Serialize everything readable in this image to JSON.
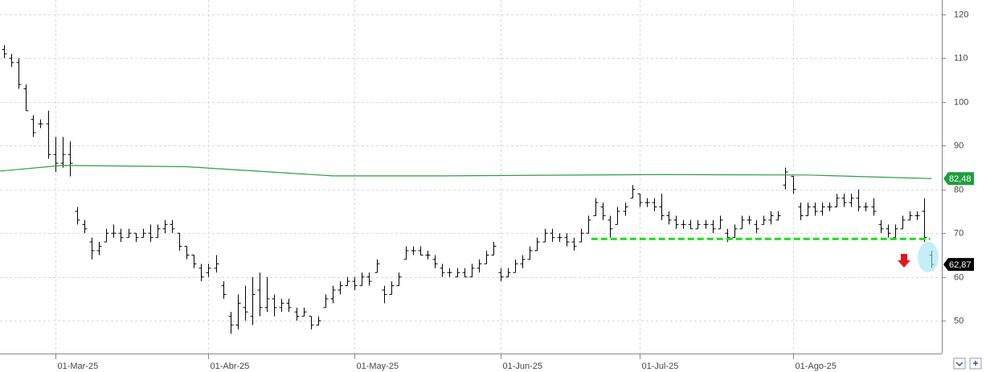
{
  "chart_data": {
    "type": "ohlc",
    "xlim": [
      -0.55,
      128.4
    ],
    "ylim": [
      42.5,
      123.3
    ],
    "yticks": [
      50,
      60,
      70,
      80,
      90,
      100,
      110,
      120
    ],
    "xticks": [
      {
        "value": 7,
        "label": "01-Mar-25"
      },
      {
        "value": 28,
        "label": "01-Abr-25"
      },
      {
        "value": 48,
        "label": "01-May-25"
      },
      {
        "value": 68,
        "label": "01-Jun-25"
      },
      {
        "value": 87,
        "label": "01-Jul-25"
      },
      {
        "value": 108,
        "label": "01-Ago-25"
      }
    ],
    "grid": true,
    "color": "#000000",
    "high": [
      113,
      111,
      110,
      104,
      97,
      96,
      98,
      92,
      92,
      91,
      76,
      73,
      69,
      68,
      71,
      72,
      71,
      71,
      70,
      71,
      72,
      72,
      73,
      73,
      70,
      67,
      65,
      63,
      63,
      65,
      59,
      52,
      56,
      58,
      60,
      61,
      60,
      56,
      55,
      55,
      53,
      53,
      51,
      51,
      56,
      58,
      59,
      60,
      60,
      61,
      61,
      64,
      58,
      59,
      61,
      67,
      67,
      67,
      66,
      65,
      63,
      62,
      62,
      62,
      63,
      64,
      66,
      68,
      62,
      62,
      64,
      65,
      67,
      69,
      71,
      71,
      70,
      70,
      69,
      71,
      74,
      78,
      77,
      74,
      76,
      77,
      81,
      79,
      78,
      78,
      79,
      75,
      74,
      73,
      73,
      73,
      73,
      73,
      74,
      71,
      72,
      74,
      74,
      73,
      74,
      75,
      75,
      85,
      83,
      77,
      77,
      77,
      77,
      77,
      79,
      79,
      79,
      80,
      77,
      78,
      73,
      72,
      72,
      74,
      75,
      75,
      78,
      66
    ],
    "low": [
      110,
      108,
      103,
      98,
      92,
      94,
      87,
      84,
      85,
      83,
      72,
      70,
      64,
      65,
      68,
      69,
      68,
      69,
      68,
      69,
      68,
      69,
      70,
      70,
      66,
      64,
      62,
      59,
      60,
      61,
      55,
      47,
      48,
      50,
      49,
      51,
      52,
      51,
      52,
      52,
      50,
      51,
      48,
      49,
      53,
      54,
      56,
      58,
      57,
      58,
      58,
      61,
      54,
      56,
      58,
      64,
      65,
      65,
      64,
      62,
      60,
      60,
      60,
      60,
      60,
      61,
      63,
      65,
      59,
      60,
      61,
      62,
      64,
      66,
      68,
      68,
      68,
      67,
      66,
      68,
      70,
      74,
      73,
      69,
      72,
      74,
      78,
      76,
      76,
      75,
      73,
      72,
      71,
      71,
      71,
      71,
      71,
      70,
      71,
      68,
      69,
      71,
      72,
      70,
      72,
      72,
      73,
      80,
      79,
      73,
      74,
      74,
      74,
      75,
      76,
      76,
      76,
      75,
      75,
      74,
      70,
      69,
      69,
      71,
      73,
      73,
      68,
      62
    ],
    "open": [
      112,
      110,
      109,
      103,
      96,
      95,
      95,
      88,
      86,
      88,
      75,
      72,
      68,
      66,
      68,
      70,
      70,
      69,
      70,
      69,
      70,
      69,
      71,
      72,
      70,
      67,
      65,
      62,
      61,
      62,
      58,
      51,
      49,
      53,
      51,
      57,
      53,
      55,
      53,
      54,
      52,
      51,
      51,
      49,
      53,
      55,
      57,
      58,
      59,
      58,
      60,
      61,
      57,
      56,
      58,
      64,
      66,
      66,
      65,
      64,
      62,
      61,
      60,
      61,
      60,
      62,
      63,
      65,
      61,
      60,
      61,
      63,
      64,
      66,
      68,
      70,
      69,
      69,
      68,
      68,
      70,
      74,
      76,
      73,
      72,
      75,
      78,
      79,
      77,
      77,
      76,
      74,
      73,
      72,
      72,
      71,
      72,
      72,
      71,
      70,
      69,
      71,
      73,
      72,
      72,
      73,
      73,
      81,
      83,
      76,
      74,
      76,
      75,
      76,
      76,
      78,
      77,
      78,
      76,
      76,
      72,
      71,
      69,
      71,
      73,
      74,
      75,
      65
    ],
    "close": [
      111,
      109,
      104,
      98,
      93,
      95,
      88,
      86,
      88,
      86,
      73,
      71,
      66,
      67,
      70,
      70,
      69,
      70,
      69,
      70,
      69,
      71,
      72,
      71,
      67,
      65,
      63,
      60,
      62,
      63,
      56,
      49,
      54,
      52,
      56,
      53,
      55,
      53,
      54,
      53,
      51,
      52,
      49,
      50,
      55,
      57,
      58,
      59,
      58,
      60,
      59,
      63,
      56,
      58,
      60,
      66,
      66,
      65,
      65,
      63,
      61,
      61,
      61,
      60,
      62,
      63,
      65,
      67,
      60,
      61,
      63,
      64,
      66,
      68,
      70,
      69,
      69,
      68,
      67,
      70,
      73,
      77,
      74,
      71,
      75,
      76,
      80,
      77,
      77,
      76,
      74,
      73,
      72,
      72,
      71,
      72,
      72,
      71,
      73,
      69,
      71,
      73,
      73,
      71,
      73,
      74,
      74,
      84,
      80,
      74,
      76,
      75,
      76,
      76,
      78,
      77,
      78,
      76,
      76,
      75,
      71,
      70,
      71,
      73,
      74,
      74,
      69,
      62.87
    ],
    "moving_average": {
      "color": "#2e9e4a",
      "x": [
        -0.55,
        8,
        25,
        45,
        60,
        90,
        110,
        127
      ],
      "values": [
        84.2,
        85.5,
        85.2,
        83.1,
        83.1,
        83.4,
        83.3,
        82.48
      ]
    },
    "support_line": {
      "value": 68.7,
      "from": 80.4,
      "to": 126.8,
      "color": "#22dd22"
    },
    "price_labels": [
      {
        "value": 82.48,
        "label": "82,48",
        "color": "#1e9e3c"
      },
      {
        "value": 62.87,
        "label": "62,87",
        "color": "#000000"
      }
    ]
  }
}
